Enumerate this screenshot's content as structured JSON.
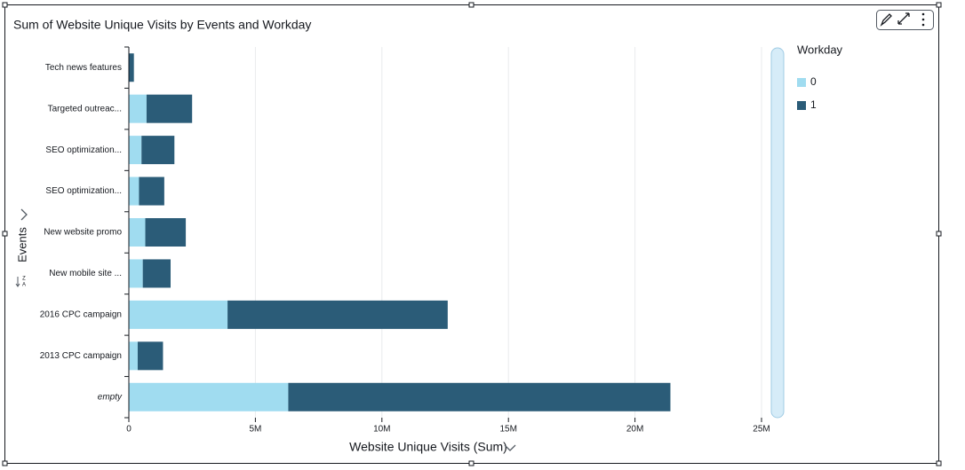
{
  "chart_data": {
    "type": "stacked-bar-horizontal",
    "title": "Sum of Website Unique Visits by Events and Workday",
    "x_label": "Website Unique Visits (Sum)",
    "y_label": "Events",
    "legend_title": "Workday",
    "categories": [
      "Tech news features",
      "Targeted outreac...",
      "SEO optimization...",
      "SEO optimization...",
      "New website promo",
      "New mobile site ...",
      "2016 CPC campaign",
      "2013 CPC campaign",
      "empty"
    ],
    "series": [
      {
        "name": "0",
        "color": "#a0dcf0",
        "values": [
          0,
          700000,
          500000,
          400000,
          650000,
          550000,
          3900000,
          350000,
          6300000
        ]
      },
      {
        "name": "1",
        "color": "#2b5c78",
        "values": [
          200000,
          1800000,
          1300000,
          1000000,
          1600000,
          1100000,
          8700000,
          1000000,
          15100000
        ]
      }
    ],
    "xlim": [
      0,
      25000000
    ],
    "xticks": [
      0,
      {
        "value": 5000000,
        "label": "5M"
      },
      {
        "value": 10000000,
        "label": "10M"
      },
      {
        "value": 15000000,
        "label": "15M"
      },
      {
        "value": 20000000,
        "label": "20M"
      },
      {
        "value": 25000000,
        "label": "25M"
      }
    ],
    "grid": true
  }
}
